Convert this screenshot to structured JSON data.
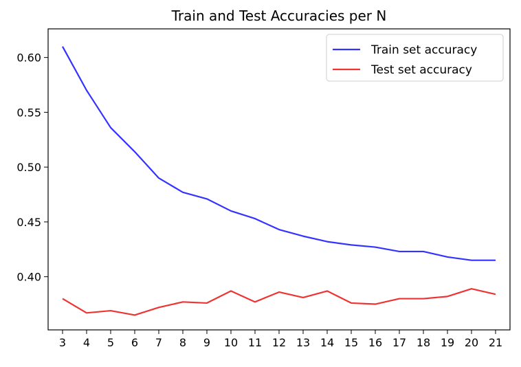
{
  "chart_data": {
    "type": "line",
    "title": "Train and Test Accuracies per N",
    "xlabel": "",
    "ylabel": "",
    "x": [
      3,
      4,
      5,
      6,
      7,
      8,
      9,
      10,
      11,
      12,
      13,
      14,
      15,
      16,
      17,
      18,
      19,
      20,
      21
    ],
    "x_ticks": [
      "3",
      "4",
      "5",
      "6",
      "7",
      "8",
      "9",
      "10",
      "11",
      "12",
      "13",
      "14",
      "15",
      "16",
      "17",
      "18",
      "19",
      "20",
      "21"
    ],
    "y_ticks": [
      "0.40",
      "0.45",
      "0.50",
      "0.55",
      "0.60"
    ],
    "y_tick_values": [
      0.4,
      0.45,
      0.5,
      0.55,
      0.6
    ],
    "xlim": [
      2.4,
      21.6
    ],
    "ylim": [
      0.3515,
      0.6261
    ],
    "grid": false,
    "legend_position": "top-right",
    "series": [
      {
        "name": "Train set accuracy",
        "color": "#3333ff",
        "values": [
          0.61,
          0.57,
          0.536,
          0.514,
          0.49,
          0.477,
          0.471,
          0.46,
          0.453,
          0.443,
          0.437,
          0.432,
          0.429,
          0.427,
          0.423,
          0.423,
          0.418,
          0.415,
          0.415
        ]
      },
      {
        "name": "Test set accuracy",
        "color": "#ee3333",
        "values": [
          0.38,
          0.367,
          0.369,
          0.365,
          0.372,
          0.377,
          0.376,
          0.387,
          0.377,
          0.386,
          0.381,
          0.387,
          0.376,
          0.375,
          0.38,
          0.38,
          0.382,
          0.389,
          0.384
        ]
      }
    ]
  }
}
